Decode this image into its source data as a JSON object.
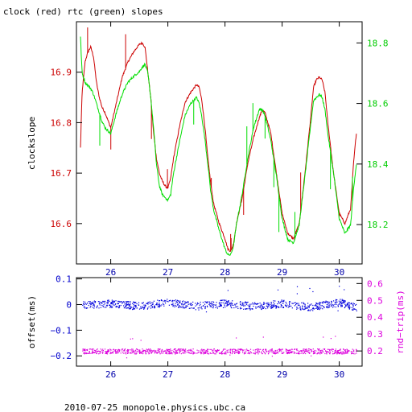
{
  "chart_data": [
    {
      "type": "line",
      "title": "clock (red) rtc (green) slopes",
      "ylabel": "clockslope",
      "ylim_left": [
        16.52,
        17.0
      ],
      "ylim_right": [
        18.07,
        18.87
      ],
      "xlim": [
        25.4,
        30.4
      ],
      "x_ticks": [
        "26",
        "27",
        "28",
        "29",
        "30"
      ],
      "y_ticks_left": [
        "16.6",
        "16.7",
        "16.8",
        "16.9"
      ],
      "y_ticks_right": [
        "18.2",
        "18.4",
        "18.6",
        "18.8"
      ],
      "colors": {
        "left_axis": "#cc0000",
        "right_axis": "#00cc00",
        "bottom_axis": "#0000aa"
      },
      "series": [
        {
          "name": "clock",
          "color": "#cc0000",
          "axis": "left",
          "x": [
            25.47,
            25.5,
            25.55,
            25.6,
            25.65,
            25.7,
            25.75,
            25.8,
            25.85,
            25.9,
            26.0,
            26.1,
            26.2,
            26.3,
            26.4,
            26.5,
            26.55,
            26.6,
            26.65,
            26.7,
            26.75,
            26.8,
            26.85,
            26.9,
            26.95,
            27.0,
            27.05,
            27.1,
            27.2,
            27.3,
            27.4,
            27.5,
            27.55,
            27.6,
            27.65,
            27.7,
            27.75,
            27.8,
            27.9,
            28.0,
            28.05,
            28.1,
            28.15,
            28.2,
            28.3,
            28.4,
            28.5,
            28.6,
            28.65,
            28.7,
            28.8,
            28.9,
            29.0,
            29.1,
            29.2,
            29.3,
            29.4,
            29.5,
            29.55,
            29.6,
            29.65,
            29.7,
            29.75,
            29.8,
            29.9,
            30.0,
            30.1,
            30.2,
            30.25,
            30.3
          ],
          "values": [
            16.75,
            16.86,
            16.92,
            16.94,
            16.95,
            16.93,
            16.88,
            16.85,
            16.83,
            16.82,
            16.79,
            16.84,
            16.89,
            16.92,
            16.94,
            16.955,
            16.958,
            16.95,
            16.9,
            16.85,
            16.78,
            16.73,
            16.7,
            16.685,
            16.675,
            16.67,
            16.69,
            16.73,
            16.79,
            16.84,
            16.86,
            16.875,
            16.87,
            16.84,
            16.79,
            16.73,
            16.68,
            16.64,
            16.6,
            16.57,
            16.55,
            16.545,
            16.56,
            16.6,
            16.65,
            16.72,
            16.77,
            16.81,
            16.825,
            16.82,
            16.78,
            16.7,
            16.62,
            16.58,
            16.57,
            16.6,
            16.7,
            16.81,
            16.87,
            16.885,
            16.89,
            16.885,
            16.86,
            16.8,
            16.7,
            16.62,
            16.6,
            16.63,
            16.72,
            16.78
          ]
        },
        {
          "name": "rtc",
          "color": "#00dd00",
          "axis": "right",
          "x": [
            25.47,
            25.5,
            25.55,
            25.6,
            25.65,
            25.7,
            25.75,
            25.8,
            25.85,
            25.9,
            26.0,
            26.1,
            26.2,
            26.3,
            26.4,
            26.5,
            26.55,
            26.6,
            26.65,
            26.7,
            26.75,
            26.8,
            26.85,
            26.9,
            26.95,
            27.0,
            27.05,
            27.1,
            27.2,
            27.3,
            27.4,
            27.5,
            27.55,
            27.6,
            27.65,
            27.7,
            27.75,
            27.8,
            27.9,
            28.0,
            28.05,
            28.1,
            28.15,
            28.2,
            28.3,
            28.4,
            28.5,
            28.6,
            28.65,
            28.7,
            28.8,
            28.9,
            29.0,
            29.1,
            29.2,
            29.3,
            29.4,
            29.5,
            29.55,
            29.6,
            29.65,
            29.7,
            29.75,
            29.8,
            29.9,
            30.0,
            30.1,
            30.2,
            30.25,
            30.3
          ],
          "values": [
            18.82,
            18.7,
            18.67,
            18.66,
            18.65,
            18.63,
            18.6,
            18.57,
            18.54,
            18.52,
            18.5,
            18.57,
            18.63,
            18.67,
            18.69,
            18.705,
            18.72,
            18.73,
            18.7,
            18.62,
            18.52,
            18.4,
            18.33,
            18.3,
            18.29,
            18.28,
            18.3,
            18.37,
            18.47,
            18.56,
            18.6,
            18.62,
            18.6,
            18.55,
            18.48,
            18.4,
            18.31,
            18.25,
            18.18,
            18.12,
            18.1,
            18.1,
            18.13,
            18.2,
            18.3,
            18.42,
            18.52,
            18.58,
            18.58,
            18.56,
            18.48,
            18.36,
            18.22,
            18.15,
            18.14,
            18.2,
            18.36,
            18.53,
            18.61,
            18.62,
            18.63,
            18.62,
            18.58,
            18.5,
            18.37,
            18.22,
            18.17,
            18.2,
            18.32,
            18.4
          ]
        }
      ]
    },
    {
      "type": "scatter",
      "ylabel": "offset(ms)",
      "ylabel_right": "rnd−trip(ms)",
      "ylim_left": [
        -0.24,
        0.105
      ],
      "ylim_right": [
        0.11,
        0.635
      ],
      "xlim": [
        25.4,
        30.4
      ],
      "x_ticks": [
        "26",
        "27",
        "28",
        "29",
        "30"
      ],
      "y_ticks_left": [
        "0.1",
        "0",
        "−0.1",
        "−0.2"
      ],
      "y_ticks_right": [
        "0.2",
        "0.3",
        "0.4",
        "0.5",
        "0.6"
      ],
      "colors": {
        "left_axis": "#0000cc",
        "right_axis": "#dd00dd",
        "bottom_axis": "#0000aa"
      },
      "series": [
        {
          "name": "offset",
          "color": "#0000dd",
          "axis": "left",
          "x": [
            25.5,
            26.0,
            26.5,
            27.0,
            27.5,
            28.0,
            28.5,
            29.0,
            29.5,
            30.0,
            30.3
          ],
          "values": [
            0.0,
            0.005,
            -0.005,
            0.01,
            -0.005,
            0.005,
            -0.005,
            0.005,
            -0.01,
            0.01,
            -0.01
          ]
        },
        {
          "name": "rnd-trip",
          "color": "#dd00dd",
          "axis": "right",
          "x": [
            25.5,
            26.0,
            26.5,
            27.0,
            27.5,
            28.0,
            28.5,
            29.0,
            29.5,
            30.0,
            30.3
          ],
          "values": [
            0.2,
            0.2,
            0.2,
            0.2,
            0.2,
            0.2,
            0.2,
            0.2,
            0.2,
            0.2,
            0.2
          ]
        }
      ]
    }
  ],
  "footer": "2010-07-25  monopole.physics.ubc.ca"
}
